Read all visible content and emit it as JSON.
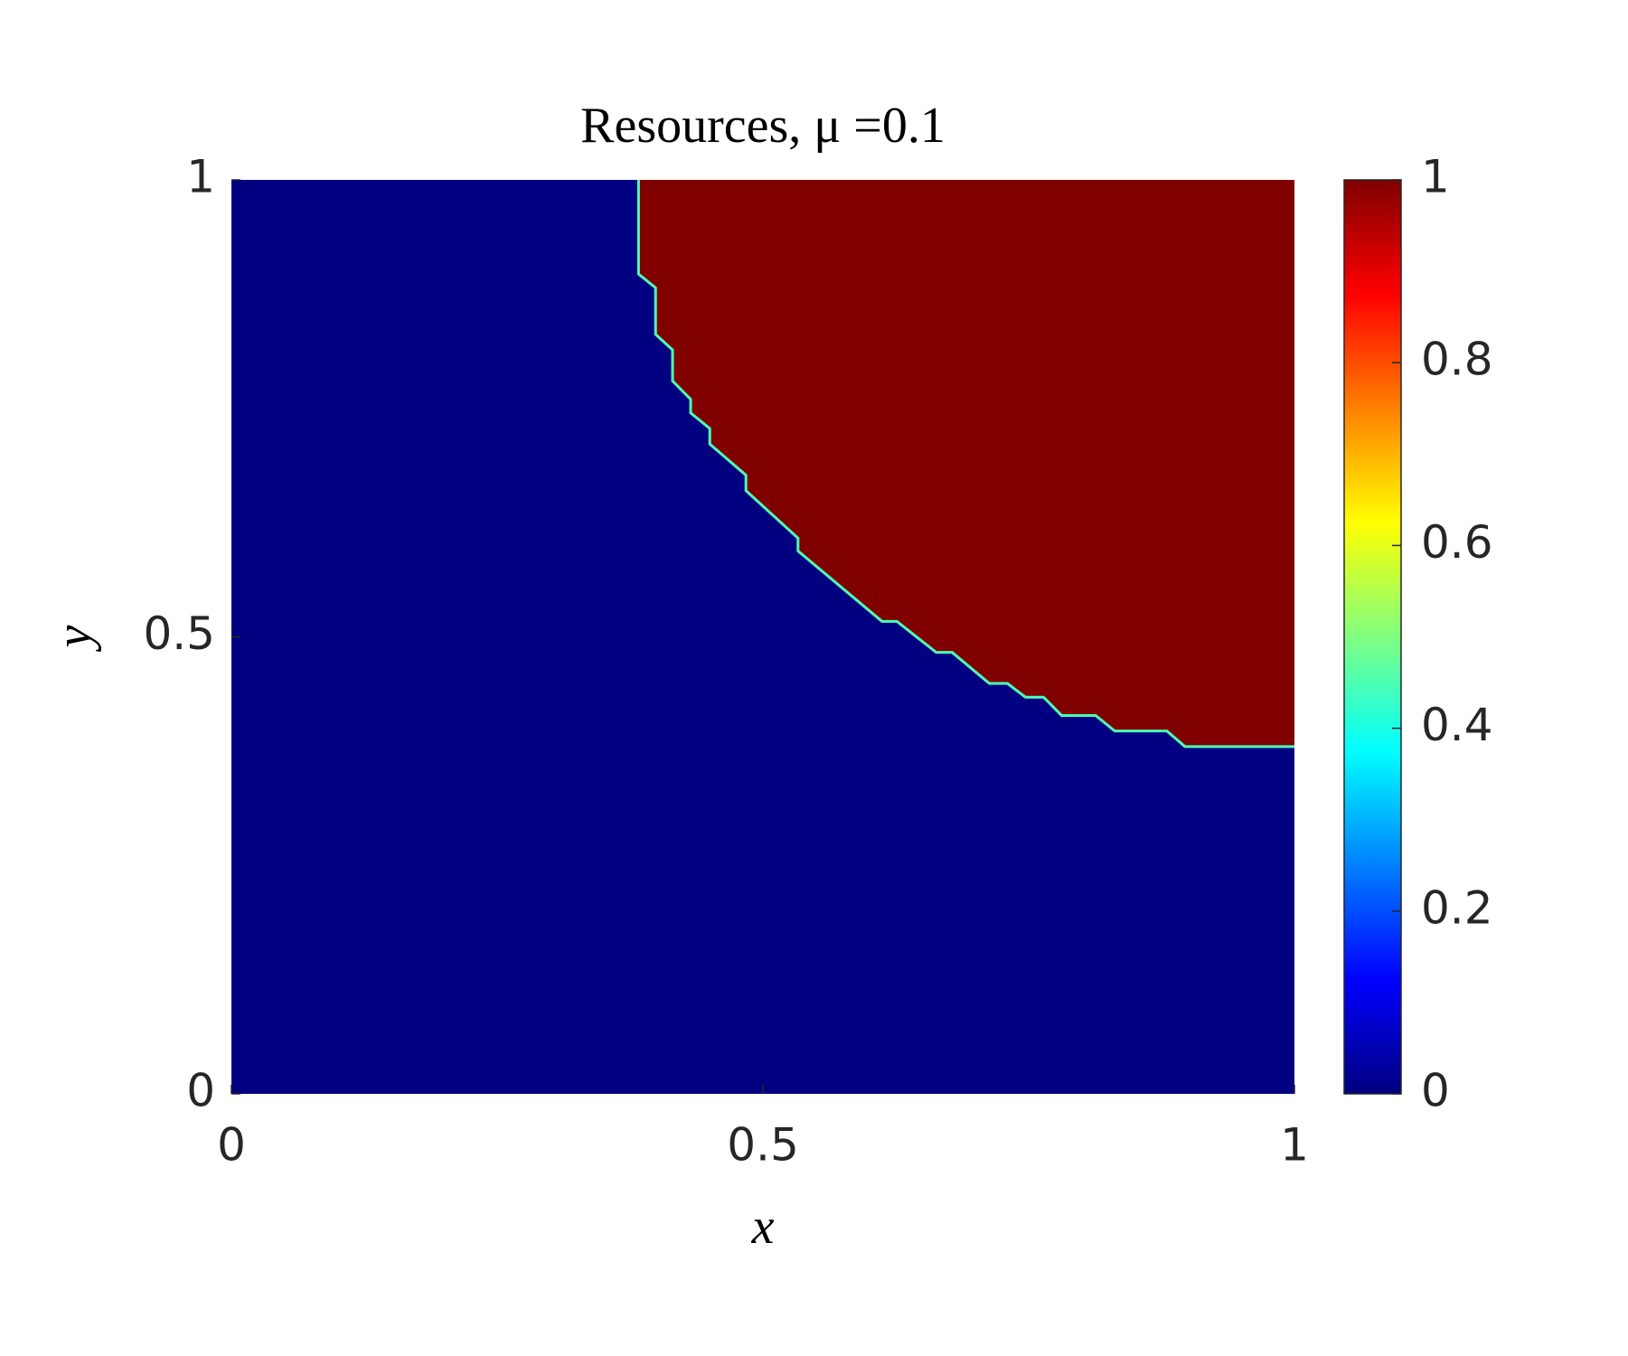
{
  "chart_data": {
    "type": "region",
    "title": "Resources, μ =0.1",
    "xlabel": "x",
    "ylabel": "y",
    "colormap": "jet",
    "inside_value": 1,
    "outside_value": 0,
    "boundary": {
      "x": [
        0.383,
        0.383,
        0.399,
        0.399,
        0.415,
        0.415,
        0.432,
        0.432,
        0.45,
        0.45,
        0.484,
        0.484,
        0.533,
        0.533,
        0.612,
        0.626,
        0.663,
        0.678,
        0.713,
        0.73,
        0.747,
        0.764,
        0.781,
        0.813,
        0.831,
        0.88,
        0.897,
        1
      ],
      "y": [
        1,
        0.897,
        0.882,
        0.831,
        0.814,
        0.78,
        0.76,
        0.745,
        0.728,
        0.711,
        0.677,
        0.66,
        0.608,
        0.594,
        0.517,
        0.517,
        0.483,
        0.483,
        0.449,
        0.449,
        0.434,
        0.434,
        0.414,
        0.414,
        0.397,
        0.397,
        0.38,
        0.38
      ]
    },
    "xlim": [
      0,
      1
    ],
    "ylim": [
      0,
      1
    ],
    "xticks": [
      0,
      0.5,
      1
    ],
    "yticks": [
      0,
      0.5,
      1
    ],
    "clim": [
      0,
      1
    ],
    "cticks": [
      0,
      0.2,
      0.4,
      0.6,
      0.8,
      1
    ]
  }
}
